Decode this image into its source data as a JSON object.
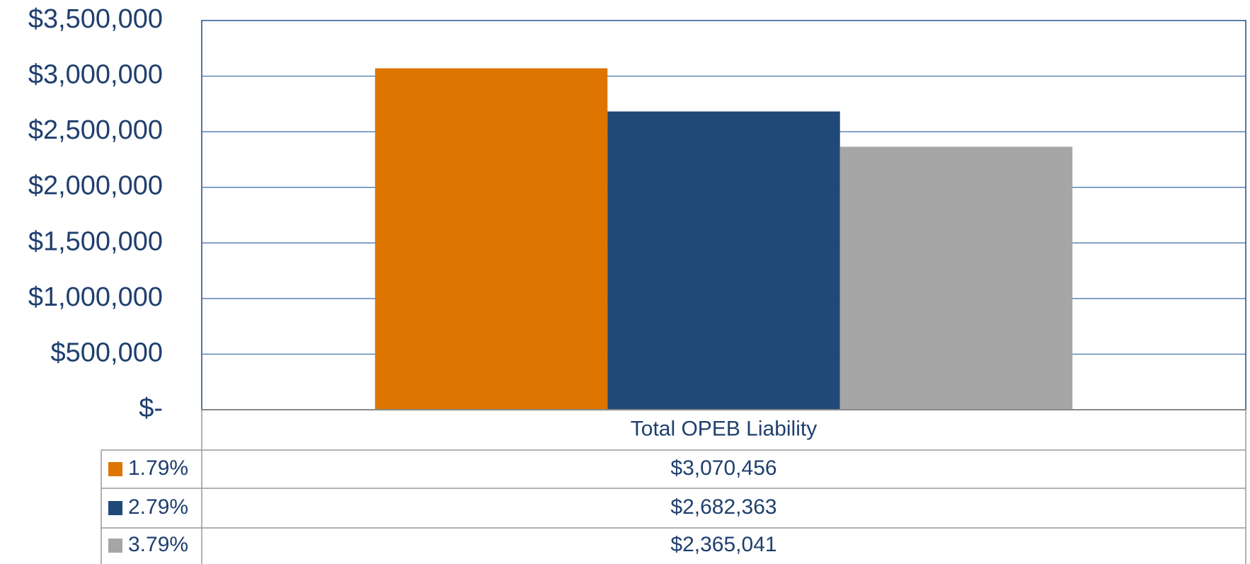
{
  "chart_data": {
    "type": "bar",
    "categories": [
      "Total OPEB Liability"
    ],
    "series": [
      {
        "name": "1.79%",
        "color": "#dd7500",
        "values": [
          3070456
        ],
        "value_labels": [
          "$3,070,456"
        ]
      },
      {
        "name": "2.79%",
        "color": "#1f4976",
        "values": [
          2682363
        ],
        "value_labels": [
          "$2,682,363"
        ]
      },
      {
        "name": "3.79%",
        "color": "#a6a6a6",
        "values": [
          2365041
        ],
        "value_labels": [
          "$2,365,041"
        ]
      }
    ],
    "ylim": [
      0,
      3500000
    ],
    "yticks": [
      {
        "value": 0,
        "label": "$-"
      },
      {
        "value": 500000,
        "label": "$500,000"
      },
      {
        "value": 1000000,
        "label": "$1,000,000"
      },
      {
        "value": 1500000,
        "label": "$1,500,000"
      },
      {
        "value": 2000000,
        "label": "$2,000,000"
      },
      {
        "value": 2500000,
        "label": "$2,500,000"
      },
      {
        "value": 3000000,
        "label": "$3,000,000"
      },
      {
        "value": 3500000,
        "label": "$3,500,000"
      }
    ],
    "grid": true,
    "data_table": true
  }
}
